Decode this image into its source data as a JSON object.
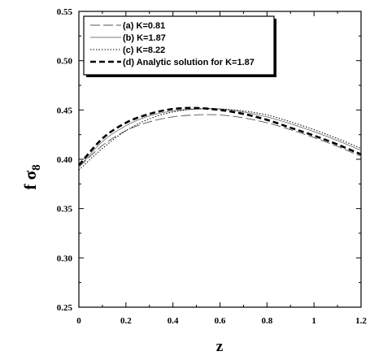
{
  "chart_data": {
    "type": "line",
    "xlabel": "z",
    "ylabel_main": "f σ",
    "ylabel_sub": "8",
    "xlim": [
      0,
      1.2
    ],
    "ylim": [
      0.25,
      0.55
    ],
    "x_ticks": [
      "0",
      "0.2",
      "0.4",
      "0.6",
      "0.8",
      "1",
      "1.2"
    ],
    "y_ticks": [
      "0.25",
      "0.30",
      "0.35",
      "0.40",
      "0.45",
      "0.50",
      "0.55"
    ],
    "grid": false,
    "legend_position": "top-left",
    "series": [
      {
        "name": "(a) K=0.81",
        "style": "longdash-thin",
        "color": "#555555",
        "x": [
          0,
          0.1,
          0.2,
          0.3,
          0.4,
          0.5,
          0.6,
          0.7,
          0.8,
          0.9,
          1.0,
          1.1,
          1.2
        ],
        "y": [
          0.392,
          0.414,
          0.429,
          0.438,
          0.443,
          0.445,
          0.445,
          0.442,
          0.437,
          0.43,
          0.422,
          0.413,
          0.403
        ]
      },
      {
        "name": "(b) K=1.87",
        "style": "solid-thin",
        "color": "#777777",
        "x": [
          0,
          0.1,
          0.2,
          0.3,
          0.4,
          0.5,
          0.6,
          0.7,
          0.8,
          0.9,
          1.0,
          1.1,
          1.2
        ],
        "y": [
          0.392,
          0.418,
          0.434,
          0.444,
          0.449,
          0.451,
          0.451,
          0.448,
          0.443,
          0.436,
          0.428,
          0.419,
          0.409
        ]
      },
      {
        "name": "(c) K=8.22",
        "style": "dotted-thin",
        "color": "#000000",
        "x": [
          0,
          0.1,
          0.2,
          0.3,
          0.4,
          0.5,
          0.6,
          0.7,
          0.8,
          0.9,
          1.0,
          1.1,
          1.2
        ],
        "y": [
          0.389,
          0.411,
          0.429,
          0.441,
          0.448,
          0.451,
          0.451,
          0.449,
          0.445,
          0.438,
          0.43,
          0.421,
          0.411
        ]
      },
      {
        "name": "(d) Analytic solution for K=1.87",
        "style": "dashed-thick",
        "color": "#000000",
        "x": [
          0,
          0.1,
          0.2,
          0.3,
          0.4,
          0.5,
          0.6,
          0.7,
          0.8,
          0.9,
          1.0,
          1.1,
          1.2
        ],
        "y": [
          0.394,
          0.421,
          0.437,
          0.446,
          0.451,
          0.452,
          0.45,
          0.446,
          0.44,
          0.432,
          0.424,
          0.415,
          0.405
        ]
      }
    ]
  }
}
